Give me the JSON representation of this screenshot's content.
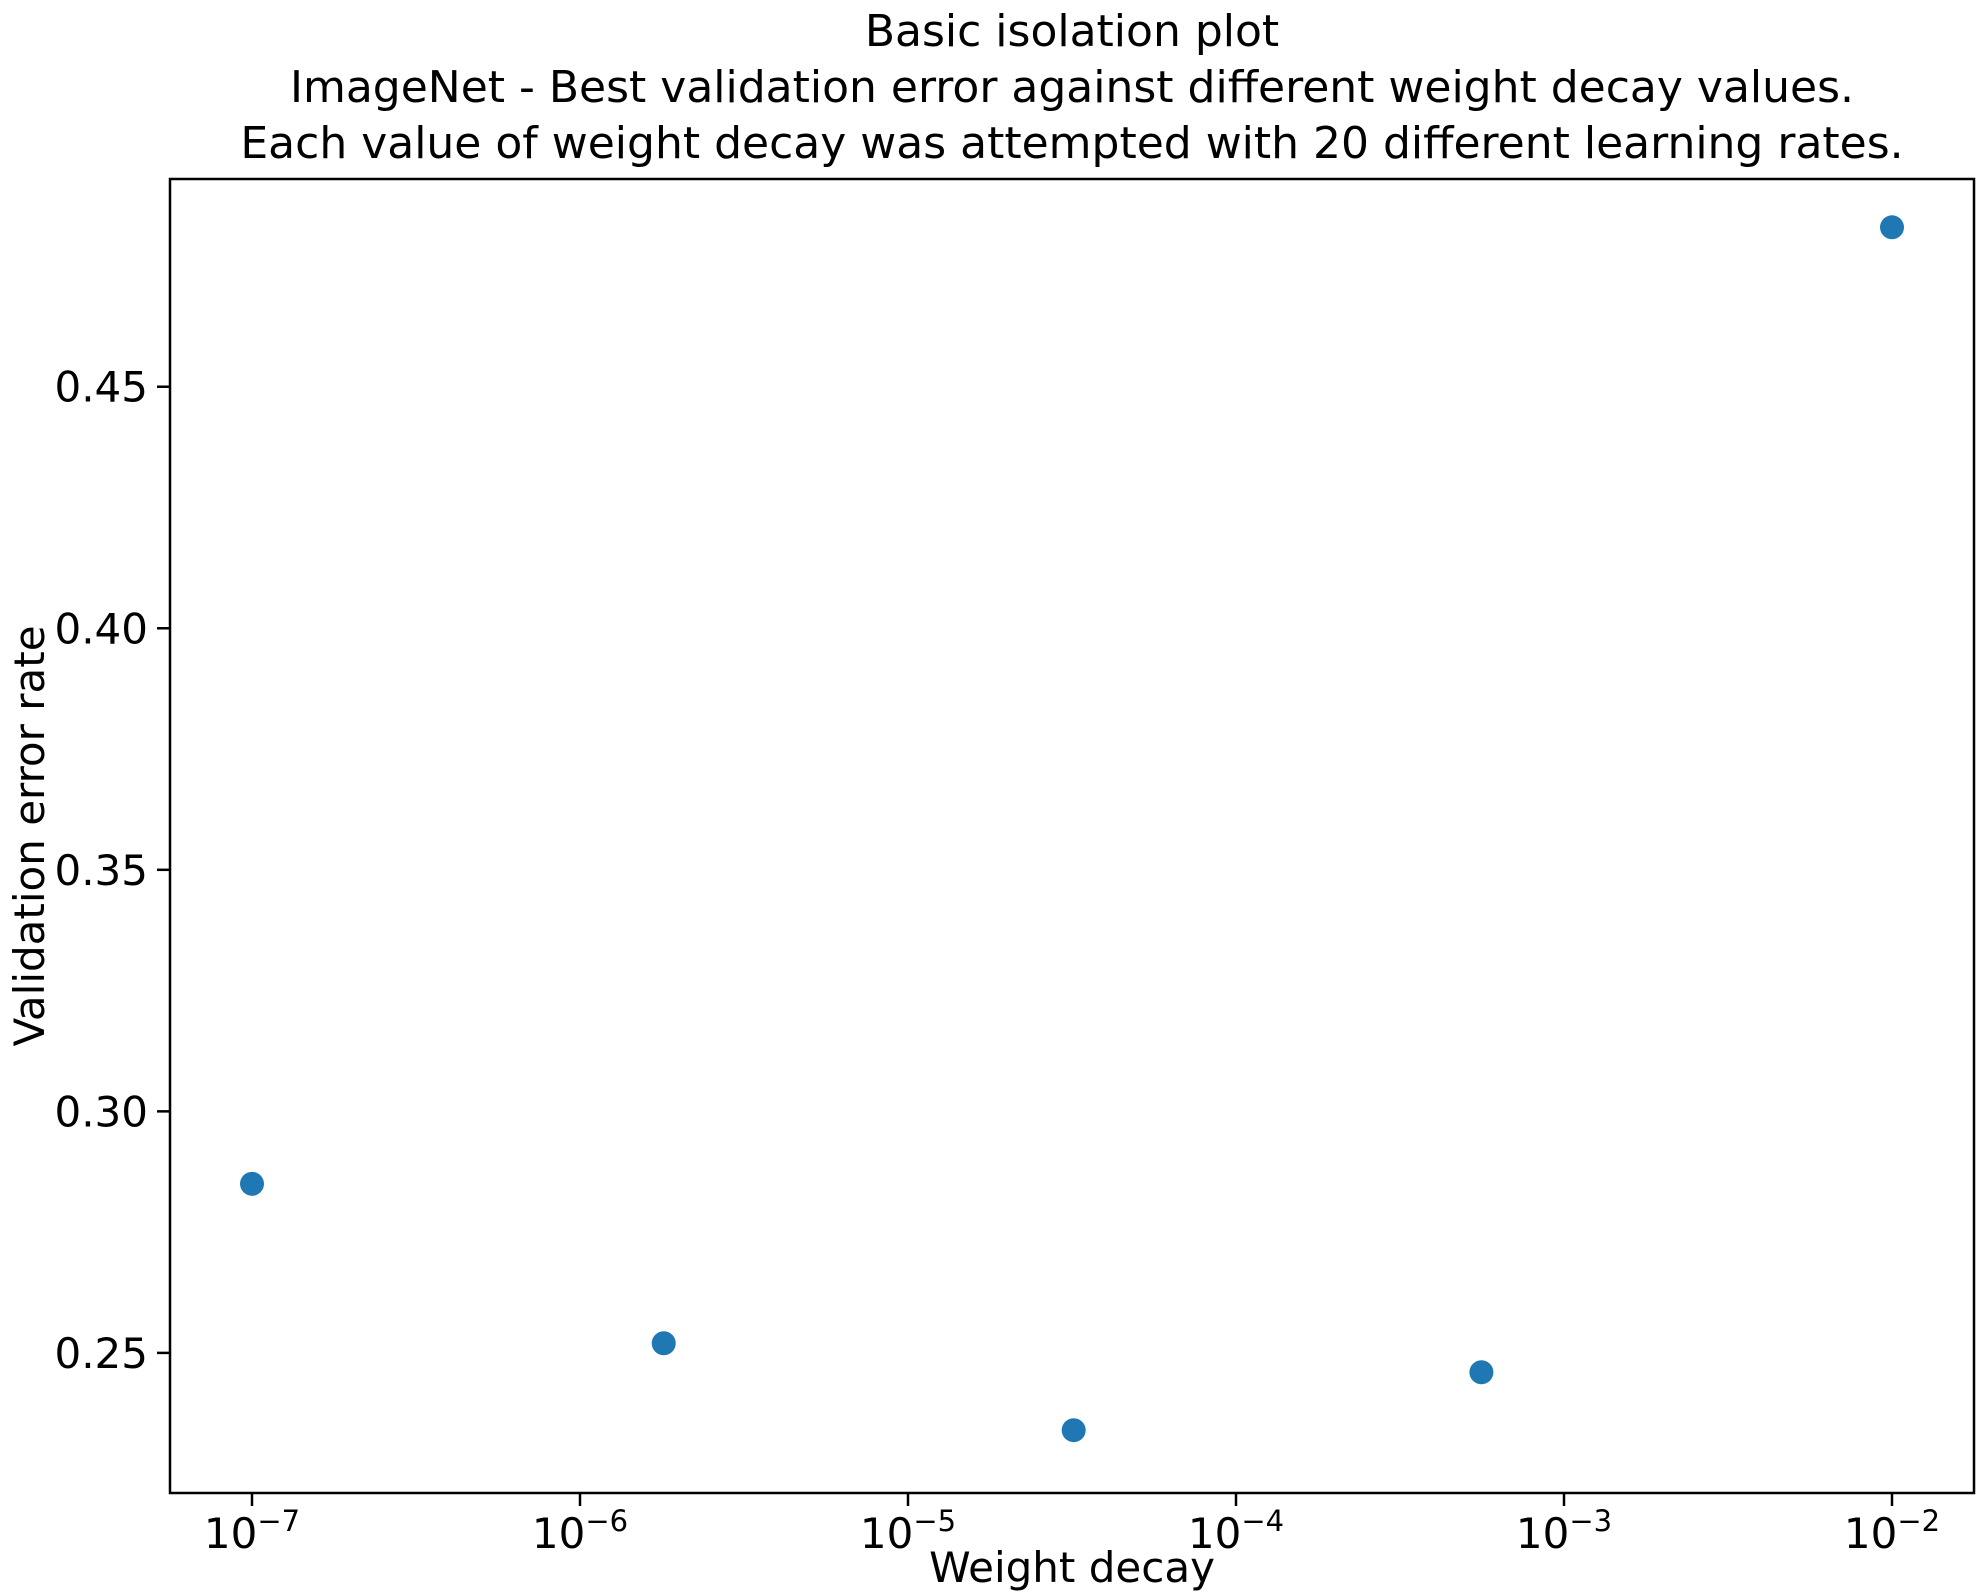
{
  "title": {
    "line1": "Basic isolation plot",
    "line2": "ImageNet - Best validation error against different weight decay values.",
    "line3": "Each value of weight decay was attempted with 20 different learning rates."
  },
  "chart_data": {
    "type": "scatter",
    "title": "Basic isolation plot\nImageNet - Best validation error against different weight decay values.\nEach value of weight decay was attempted with 20 different learning rates.",
    "xlabel": "Weight decay",
    "ylabel": "Validation error rate",
    "x_scale": "log",
    "x": [
      1e-07,
      1.8e-06,
      3.2e-05,
      0.00056,
      0.01
    ],
    "y": [
      0.285,
      0.252,
      0.234,
      0.246,
      0.483
    ],
    "xlim_exp": [
      -7.25,
      -1.75
    ],
    "ylim": [
      0.221,
      0.493
    ],
    "x_tick_exponents": [
      -7,
      -6,
      -5,
      -4,
      -3,
      -2
    ],
    "y_ticks": [
      0.25,
      0.3,
      0.35,
      0.4,
      0.45
    ],
    "marker_color": "#1f77b4",
    "axis_color": "#000000",
    "grid": false,
    "legend": null
  }
}
